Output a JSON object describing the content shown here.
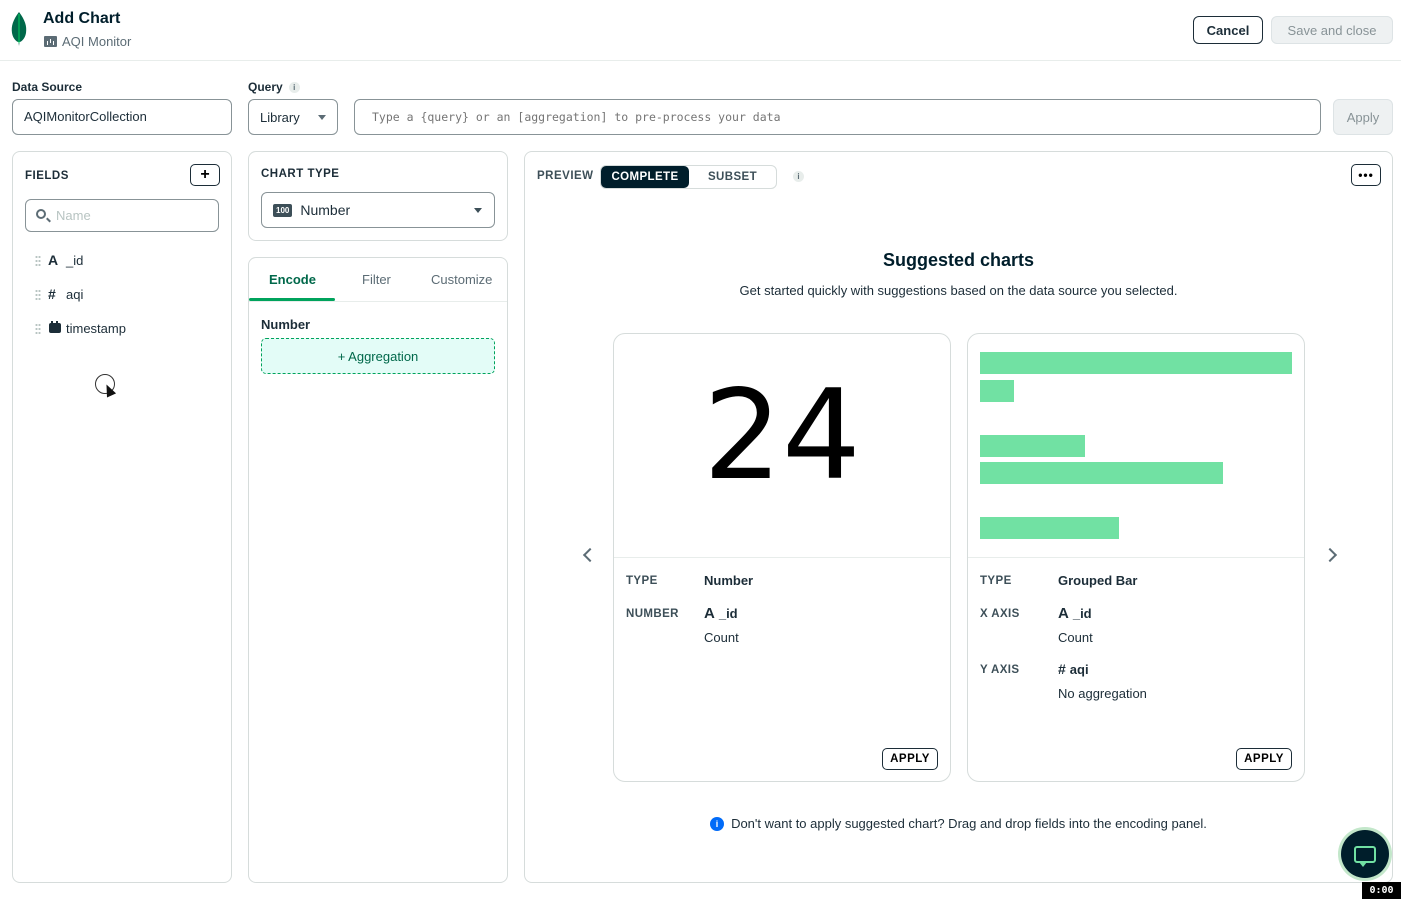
{
  "header": {
    "title": "Add Chart",
    "dashboard": "AQI Monitor",
    "cancel_label": "Cancel",
    "save_label": "Save and close"
  },
  "datasource": {
    "label": "Data Source",
    "value": "AQIMonitorCollection"
  },
  "query": {
    "label": "Query",
    "info": "i",
    "mode": "Library",
    "placeholder": "Type a {query} or an [aggregation] to pre-process your data",
    "apply_label": "Apply"
  },
  "fields": {
    "title": "FIELDS",
    "add_label": "+",
    "search_placeholder": "Name",
    "items": [
      {
        "type_glyph": "A",
        "name": "_id"
      },
      {
        "type_glyph": "#",
        "name": "aqi"
      },
      {
        "type_glyph": "",
        "name": "timestamp"
      }
    ]
  },
  "chart_type": {
    "title": "CHART TYPE",
    "badge": "100",
    "value": "Number"
  },
  "encode": {
    "tabs": [
      "Encode",
      "Filter",
      "Customize"
    ],
    "channel_label": "Number",
    "aggregation_label": "+ Aggregation"
  },
  "preview": {
    "label": "PREVIEW",
    "seg_complete": "COMPLETE",
    "seg_subset": "SUBSET",
    "info": "i",
    "more": "•••",
    "title": "Suggested charts",
    "subtitle": "Get started quickly with suggestions based on the data source you selected.",
    "footnote_icon": "i",
    "footnote": "Don't want to apply suggested chart? Drag and drop fields into the encoding panel.",
    "cards": [
      {
        "big_value": "24",
        "rows": [
          {
            "label": "TYPE",
            "value": "Number"
          },
          {
            "label": "NUMBER",
            "field_glyph": "A",
            "field": "_id",
            "agg": "Count"
          }
        ],
        "apply_label": "APPLY"
      },
      {
        "rows": [
          {
            "label": "TYPE",
            "value": "Grouped Bar"
          },
          {
            "label": "X AXIS",
            "field_glyph": "A",
            "field": "_id",
            "agg": "Count"
          },
          {
            "label": "Y AXIS",
            "field_glyph": "#",
            "field": "aqi",
            "agg": "No aggregation"
          }
        ],
        "apply_label": "APPLY",
        "bar_fractions": [
          1.0,
          0.11,
          0,
          0.335,
          0.78,
          0,
          0.445
        ],
        "bar_color": "#71e1a3"
      }
    ]
  },
  "timer": "0:00",
  "colors": {
    "brand_green": "#00a35c",
    "dark": "#001e2b",
    "bar_green": "#71e1a3",
    "info_blue": "#016bf8"
  }
}
